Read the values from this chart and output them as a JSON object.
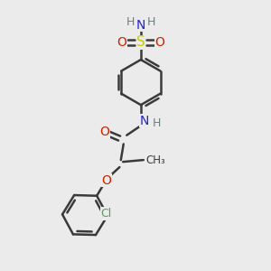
{
  "bg_color": "#ebebeb",
  "atom_colors": {
    "C": "#3a3a3a",
    "H": "#6a8080",
    "N": "#2222cc",
    "O": "#cc2200",
    "S": "#cccc00",
    "Cl": "#44aa44"
  },
  "bond_color": "#3a3a3a",
  "bond_width": 1.8,
  "font_size_atoms": 10,
  "font_size_h": 9,
  "font_size_cl": 9
}
